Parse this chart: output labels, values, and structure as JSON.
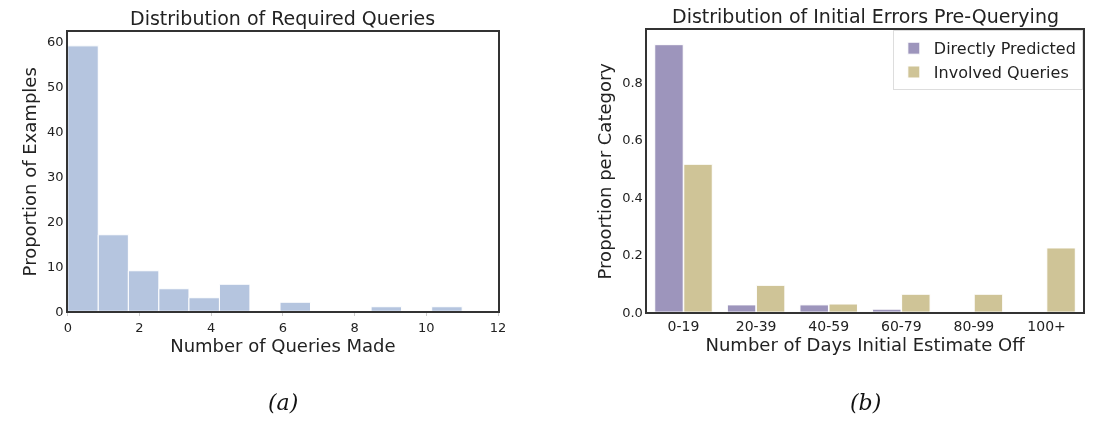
{
  "chart_data": [
    {
      "type": "histogram",
      "title": "Distribution of Required Queries",
      "xlabel": "Number of Queries Made",
      "ylabel": "Proportion of Examples",
      "bins": [
        0,
        0.85,
        1.69,
        2.54,
        3.38,
        4.23,
        5.08,
        5.92,
        6.77,
        7.62,
        8.46,
        9.31,
        10.15,
        11
      ],
      "values": [
        59,
        17,
        9,
        5,
        3,
        6,
        0,
        2,
        0,
        0,
        1,
        0,
        1
      ],
      "color": "#b5c5df",
      "xlim": [
        0,
        12
      ],
      "xticks": [
        0,
        2,
        4,
        6,
        8,
        10,
        12
      ],
      "ylim": [
        0,
        62
      ],
      "yticks": [
        0,
        10,
        20,
        30,
        40,
        50,
        60
      ],
      "legend": false,
      "annotations": [
        "(a)"
      ]
    },
    {
      "type": "bar",
      "title": "Distribution of Initial Errors Pre-Querying",
      "xlabel": "Number of Days Initial Estimate Off",
      "ylabel": "Proportion per Category",
      "categories": [
        "0-19",
        "20-39",
        "40-59",
        "60-79",
        "80-99",
        "100+"
      ],
      "series": [
        {
          "name": "Directly Predicted",
          "color": "#9d95bc",
          "values": [
            0.93,
            0.025,
            0.025,
            0.01,
            0,
            0
          ]
        },
        {
          "name": "Involved Queries",
          "color": "#cfc497",
          "values": [
            0.514,
            0.093,
            0.028,
            0.062,
            0.062,
            0.223
          ]
        }
      ],
      "ylim": [
        0,
        0.98
      ],
      "yticks": [
        {
          "value": 0,
          "label": "0.0"
        },
        0.2,
        0.4,
        0.6,
        0.8
      ],
      "legend": "top right",
      "annotations": [
        "(b)"
      ]
    }
  ]
}
